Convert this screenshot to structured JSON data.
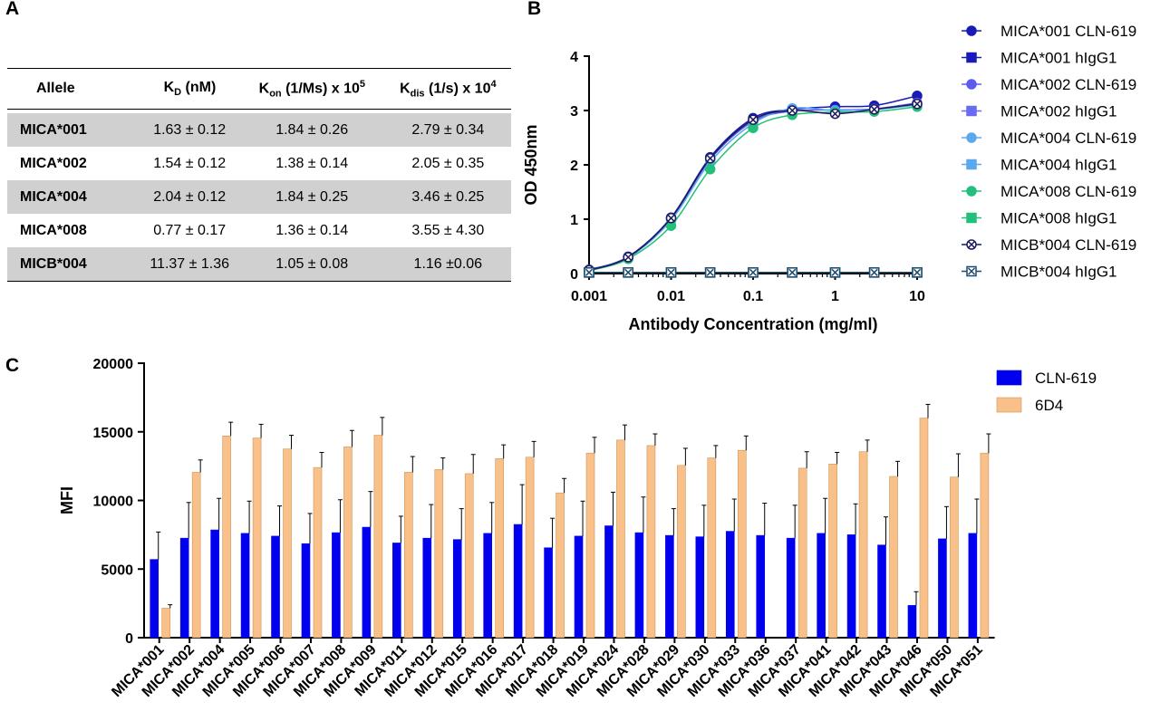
{
  "panels": {
    "a": "A",
    "b": "B",
    "c": "C"
  },
  "table": {
    "headers": {
      "allele": "Allele",
      "kd_main": "K",
      "kd_sub": "D",
      "kd_unit": " (nM)",
      "kon_main": "K",
      "kon_sub": "on",
      "kon_unit": " (1/Ms) x 10",
      "kon_sup": "5",
      "kdis_main": "K",
      "kdis_sub": "dis",
      "kdis_unit": " (1/s) x 10",
      "kdis_sup": "4"
    },
    "rows": [
      {
        "allele": "MICA*001",
        "kd": "1.63 ± 0.12",
        "kon": "1.84 ± 0.26",
        "kdis": "2.79 ± 0.34"
      },
      {
        "allele": "MICA*002",
        "kd": "1.54 ± 0.12",
        "kon": "1.38 ± 0.14",
        "kdis": "2.05 ± 0.35"
      },
      {
        "allele": "MICA*004",
        "kd": "2.04 ± 0.12",
        "kon": "1.84 ± 0.25",
        "kdis": "3.46 ± 0.25"
      },
      {
        "allele": "MICA*008",
        "kd": "0.77 ± 0.17",
        "kon": "1.36 ± 0.14",
        "kdis": "3.55 ± 4.30"
      },
      {
        "allele": "MICB*004",
        "kd": "11.37 ± 1.36",
        "kon": "1.05 ± 0.08",
        "kdis": "1.16 ±0.06"
      }
    ]
  },
  "chart_data": [
    {
      "type": "line",
      "xlabel": "Antibody Concentration (mg/ml)",
      "ylabel": "OD 450nm",
      "xscale": "log",
      "xlim": [
        0.001,
        10
      ],
      "ylim": [
        0,
        4
      ],
      "x_ticks": [
        "0.001",
        "0.01",
        "0.1",
        "1",
        "10"
      ],
      "y_ticks": [
        "0",
        "1",
        "2",
        "3",
        "4"
      ],
      "legend_position": "right",
      "x": [
        0.001,
        0.003,
        0.01,
        0.03,
        0.1,
        0.3,
        1,
        3,
        10
      ],
      "series": [
        {
          "name": "MICA*001 CLN-619",
          "color": "#1a1ab8",
          "marker": "circle",
          "values": [
            0.07,
            0.31,
            1.03,
            2.14,
            2.86,
            3.02,
            3.07,
            3.09,
            3.27
          ]
        },
        {
          "name": "MICA*001 hIgG1",
          "color": "#1a1ab8",
          "marker": "square",
          "values": [
            0.02,
            0.02,
            0.02,
            0.02,
            0.02,
            0.02,
            0.02,
            0.02,
            0.02
          ]
        },
        {
          "name": "MICA*002 CLN-619",
          "color": "#5b5bf0",
          "marker": "circle",
          "values": [
            0.06,
            0.3,
            1.01,
            2.1,
            2.8,
            2.99,
            3.01,
            3.03,
            3.14
          ]
        },
        {
          "name": "MICA*002 hIgG1",
          "color": "#6a6aee",
          "marker": "square",
          "values": [
            0.02,
            0.02,
            0.02,
            0.02,
            0.02,
            0.02,
            0.02,
            0.02,
            0.02
          ]
        },
        {
          "name": "MICA*004 CLN-619",
          "color": "#5aa8f0",
          "marker": "circle",
          "values": [
            0.06,
            0.29,
            0.98,
            2.05,
            2.76,
            3.04,
            3.0,
            3.02,
            3.1
          ]
        },
        {
          "name": "MICA*004 hIgG1",
          "color": "#5aa8f0",
          "marker": "square",
          "values": [
            0.02,
            0.02,
            0.02,
            0.02,
            0.02,
            0.02,
            0.02,
            0.02,
            0.02
          ]
        },
        {
          "name": "MICA*008 CLN-619",
          "color": "#22c07a",
          "marker": "circle",
          "values": [
            0.05,
            0.27,
            0.88,
            1.92,
            2.68,
            2.92,
            2.97,
            2.98,
            3.07
          ]
        },
        {
          "name": "MICA*008 hIgG1",
          "color": "#22c07a",
          "marker": "square",
          "values": [
            0.02,
            0.02,
            0.02,
            0.02,
            0.02,
            0.02,
            0.02,
            0.02,
            0.02
          ]
        },
        {
          "name": "MICB*004 CLN-619",
          "color": "#1c1c5c",
          "marker": "circle-x",
          "values": [
            0.06,
            0.3,
            1.02,
            2.12,
            2.83,
            3.0,
            2.94,
            3.02,
            3.12
          ]
        },
        {
          "name": "MICB*004 hIgG1",
          "color": "#1f4a6a",
          "marker": "square-x",
          "values": [
            0.02,
            0.02,
            0.02,
            0.02,
            0.02,
            0.02,
            0.02,
            0.02,
            0.02
          ]
        }
      ]
    },
    {
      "type": "bar",
      "ylabel": "MFI",
      "ylim": [
        0,
        20000
      ],
      "y_ticks": [
        "0",
        "5000",
        "10000",
        "15000",
        "20000"
      ],
      "legend_position": "top-right",
      "categories": [
        "MICA*001",
        "MICA*002",
        "MICA*004",
        "MICA*005",
        "MICA*006",
        "MICA*007",
        "MICA*008",
        "MICA*009",
        "MICA*011",
        "MICA*012",
        "MICA*015",
        "MICA*016",
        "MICA*017",
        "MICA*018",
        "MICA*019",
        "MICA*024",
        "MICA*028",
        "MICA*029",
        "MICA*030",
        "MICA*033",
        "MICA*036",
        "MICA*037",
        "MICA*041",
        "MICA*042",
        "MICA*043",
        "MICA*046",
        "MICA*050",
        "MICA*051"
      ],
      "series": [
        {
          "name": "CLN-619",
          "color": "#0000ee",
          "values": [
            5700,
            7250,
            7850,
            7600,
            7400,
            6850,
            7650,
            8050,
            6900,
            7250,
            7150,
            7600,
            8250,
            6550,
            7400,
            8150,
            7650,
            7450,
            7350,
            7750,
            7450,
            7250,
            7600,
            7500,
            6750,
            2350,
            7200,
            7600
          ],
          "errors": [
            2000,
            2600,
            2300,
            2350,
            2200,
            2200,
            2400,
            2600,
            1950,
            2450,
            2250,
            2250,
            2900,
            2150,
            2550,
            2450,
            2600,
            1950,
            2300,
            2350,
            2350,
            2400,
            2550,
            2250,
            2050,
            1000,
            2350,
            2500
          ]
        },
        {
          "name": "6D4",
          "color": "#f9c189",
          "values": [
            2150,
            12050,
            14700,
            14550,
            13750,
            12400,
            13900,
            14750,
            12050,
            12250,
            11950,
            13050,
            13150,
            10550,
            13450,
            14400,
            14000,
            12550,
            13100,
            13650,
            null,
            12350,
            12650,
            13550,
            11750,
            16000,
            11700,
            13450
          ],
          "errors": [
            250,
            900,
            1000,
            1000,
            1000,
            1100,
            1200,
            1300,
            1150,
            850,
            1400,
            1000,
            1150,
            1050,
            1150,
            1100,
            850,
            1250,
            900,
            1050,
            null,
            1200,
            850,
            850,
            1100,
            1000,
            1700,
            1400
          ]
        }
      ]
    }
  ]
}
